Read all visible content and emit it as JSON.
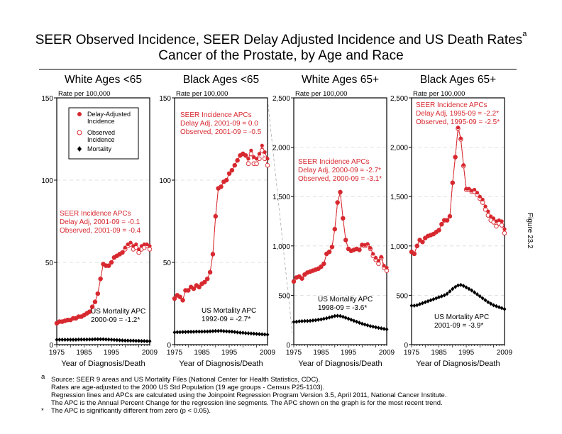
{
  "title": {
    "line1": "SEER Observed Incidence, SEER Delay Adjusted Incidence and US Death Rates",
    "sup": "a",
    "line2": "Cancer of the Prostate, by Age and Race"
  },
  "figure_label": "Figure 23.2",
  "legend": {
    "delay": "Delay-Adjusted",
    "delay2": "Incidence",
    "observed": "Observed",
    "observed2": "Incidence",
    "mortality": "Mortality"
  },
  "colors": {
    "incidence": "#d7282f",
    "mortality": "#000000",
    "grid": "#d9d9d9"
  },
  "footnotes": {
    "a_mark": "a",
    "star_mark": "*",
    "l1": "Source: SEER 9 areas and US Mortality Files (National Center for Health Statistics, CDC).",
    "l2": "Rates are age-adjusted to the 2000 US Std Population (19 age groups - Census P25-1103).",
    "l3": "Regression lines and APCs are calculated using the Joinpoint Regression Program Version 3.5, April 2011, National Cancer Institute.",
    "l4": "The APC is the Annual Percent Change for the regression line segments. The APC shown on the graph is for the most recent trend.",
    "l5": "The APC is significantly different from zero (p < 0.05)."
  },
  "chart_data": [
    {
      "type": "line",
      "title": "White Ages <65",
      "ylabel": "Rate per 100,000",
      "xlabel": "Year of Diagnosis/Death",
      "ylim": [
        0,
        150
      ],
      "yticks": [
        "0",
        "50",
        "100",
        "150"
      ],
      "ytickvals": [
        0,
        50,
        100,
        150
      ],
      "xticks": [
        "1975",
        "1985",
        "1995",
        "2009"
      ],
      "x_start": 1975,
      "inc_note": [
        "SEER Incidence APCs",
        "Delay Adj, 2001-09 = -0.1",
        "Observed, 2001-09 = -0.4"
      ],
      "mort_note": [
        "US Mortality APC",
        "2000-09 = -1.2*"
      ],
      "delay": [
        13,
        14,
        14,
        14.5,
        15,
        15,
        16,
        16,
        17,
        17,
        18,
        19,
        20,
        23,
        26,
        31,
        40,
        49,
        48,
        48,
        50,
        53,
        54,
        55,
        56,
        59,
        61,
        62,
        60,
        61,
        58,
        60,
        61,
        61,
        60
      ],
      "observed": [
        13,
        14,
        14,
        14.5,
        15,
        15,
        16,
        16,
        17,
        17,
        18,
        19,
        20,
        23,
        26,
        31,
        40,
        49,
        48,
        48,
        50,
        53,
        54,
        55,
        56,
        58,
        60,
        61,
        58,
        59,
        56,
        58,
        59,
        60,
        58
      ],
      "mortality": [
        3,
        3,
        3,
        3,
        3,
        3,
        3,
        3,
        3.1,
        3.1,
        3.1,
        3.1,
        3.2,
        3.2,
        3.3,
        3.3,
        3.3,
        3.3,
        3.2,
        3.1,
        3,
        2.9,
        2.8,
        2.7,
        2.6,
        2.5,
        2.5,
        2.4,
        2.4,
        2.3,
        2.3,
        2.2,
        2.2,
        2.1,
        2.1
      ]
    },
    {
      "type": "line",
      "title": "Black Ages <65",
      "ylabel": "Rate per 100,000",
      "xlabel": "Year of Diagnosis/Death",
      "ylim": [
        0,
        150
      ],
      "yticks": [
        "0",
        "50",
        "100",
        "150"
      ],
      "ytickvals": [
        0,
        50,
        100,
        150
      ],
      "xticks": [
        "1975",
        "1985",
        "1995",
        "2009"
      ],
      "x_start": 1975,
      "inc_note": [
        "SEER Incidence APCs",
        "Delay Adj, 2001-09 = 0.0",
        "Observed, 2001-09 = -0.5"
      ],
      "mort_note": [
        "US Mortality APC",
        "1992-09 = -2.7*"
      ],
      "delay": [
        28,
        30,
        29,
        27,
        33,
        33,
        35,
        34,
        36,
        35,
        37,
        38,
        40,
        44,
        55,
        78,
        95,
        96,
        99,
        100,
        104,
        106,
        109,
        112,
        115,
        116,
        115,
        113,
        118,
        114,
        113,
        116,
        121,
        117,
        113
      ],
      "observed": [
        28,
        30,
        29,
        27,
        33,
        33,
        35,
        34,
        36,
        35,
        37,
        38,
        40,
        44,
        55,
        78,
        95,
        96,
        99,
        100,
        104,
        106,
        109,
        112,
        115,
        116,
        115,
        110,
        116,
        110,
        110,
        113,
        118,
        113,
        109
      ],
      "mortality": [
        7.5,
        7.6,
        7.6,
        7.7,
        7.7,
        7.8,
        7.8,
        7.8,
        7.9,
        7.9,
        7.9,
        8,
        8,
        8.1,
        8.2,
        8.3,
        8.3,
        8.4,
        8.2,
        8.1,
        8,
        7.9,
        7.7,
        7.5,
        7.3,
        7.2,
        7,
        6.9,
        6.8,
        6.7,
        6.5,
        6.4,
        6.3,
        6.2,
        6.1
      ]
    },
    {
      "type": "line",
      "title": "White Ages 65+",
      "ylabel": "Rate per 100,000",
      "xlabel": "Year of Diagnosis/Death",
      "ylim": [
        0,
        2500
      ],
      "yticks": [
        "0",
        "500",
        "1,000",
        "1,500",
        "2,000",
        "2,500"
      ],
      "ytickvals": [
        0,
        500,
        1000,
        1500,
        2000,
        2500
      ],
      "xticks": [
        "1975",
        "1985",
        "1995",
        "2009"
      ],
      "x_start": 1975,
      "inc_note": [
        "SEER Incidence APCs",
        "Delay Adj, 2000-09 = -2.7*",
        "Observed, 2000-09 = -3.1*"
      ],
      "mort_note": [
        "US Mortality APC",
        "1998-09 = -3.6*"
      ],
      "delay": [
        640,
        680,
        690,
        670,
        710,
        730,
        740,
        750,
        760,
        770,
        790,
        820,
        920,
        940,
        990,
        1170,
        1440,
        1545,
        1280,
        1060,
        970,
        950,
        960,
        970,
        960,
        1010,
        1010,
        1020,
        980,
        920,
        880,
        850,
        890,
        800,
        780
      ],
      "observed": [
        640,
        680,
        690,
        670,
        710,
        730,
        740,
        750,
        760,
        770,
        790,
        820,
        920,
        940,
        990,
        1170,
        1440,
        1545,
        1280,
        1060,
        970,
        950,
        960,
        970,
        960,
        1010,
        1000,
        1010,
        970,
        900,
        860,
        820,
        880,
        780,
        750
      ],
      "mortality": [
        230,
        232,
        236,
        238,
        240,
        240,
        242,
        245,
        248,
        252,
        256,
        262,
        268,
        275,
        282,
        290,
        292,
        290,
        282,
        272,
        262,
        252,
        242,
        232,
        222,
        212,
        204,
        196,
        188,
        182,
        176,
        170,
        165,
        160,
        155
      ]
    },
    {
      "type": "line",
      "title": "Black Ages 65+",
      "ylabel": "Rate per 100,000",
      "xlabel": "Year of Diagnosis/Death",
      "ylim": [
        0,
        2500
      ],
      "yticks": [
        "0",
        "500",
        "1,000",
        "1,500",
        "2,000",
        "2,500"
      ],
      "ytickvals": [
        0,
        500,
        1000,
        1500,
        2000,
        2500
      ],
      "xticks": [
        "1975",
        "1985",
        "1995",
        "2009"
      ],
      "x_start": 1975,
      "inc_note": [
        "SEER Incidence APCs",
        "Delay Adj, 1995-09 = -2.2*",
        "Observed, 1995-09 = -2.5*"
      ],
      "mort_note": [
        "US Mortality APC",
        "2001-09 = -3.9*"
      ],
      "delay": [
        940,
        920,
        1000,
        1060,
        1040,
        1080,
        1100,
        1110,
        1120,
        1140,
        1160,
        1220,
        1260,
        1260,
        1300,
        1640,
        1900,
        2200,
        2090,
        1820,
        1580,
        1580,
        1560,
        1570,
        1540,
        1500,
        1470,
        1400,
        1350,
        1300,
        1280,
        1250,
        1260,
        1250,
        1170
      ],
      "observed": [
        940,
        920,
        1000,
        1060,
        1040,
        1080,
        1100,
        1110,
        1120,
        1140,
        1160,
        1220,
        1260,
        1260,
        1300,
        1640,
        1900,
        2190,
        2080,
        1810,
        1570,
        1570,
        1550,
        1550,
        1520,
        1480,
        1440,
        1370,
        1310,
        1260,
        1240,
        1200,
        1230,
        1210,
        1130
      ],
      "mortality": [
        395,
        395,
        400,
        410,
        420,
        430,
        440,
        450,
        460,
        470,
        480,
        490,
        500,
        515,
        540,
        565,
        585,
        600,
        605,
        595,
        580,
        565,
        550,
        530,
        510,
        490,
        470,
        450,
        430,
        415,
        400,
        390,
        380,
        370,
        360
      ]
    }
  ]
}
